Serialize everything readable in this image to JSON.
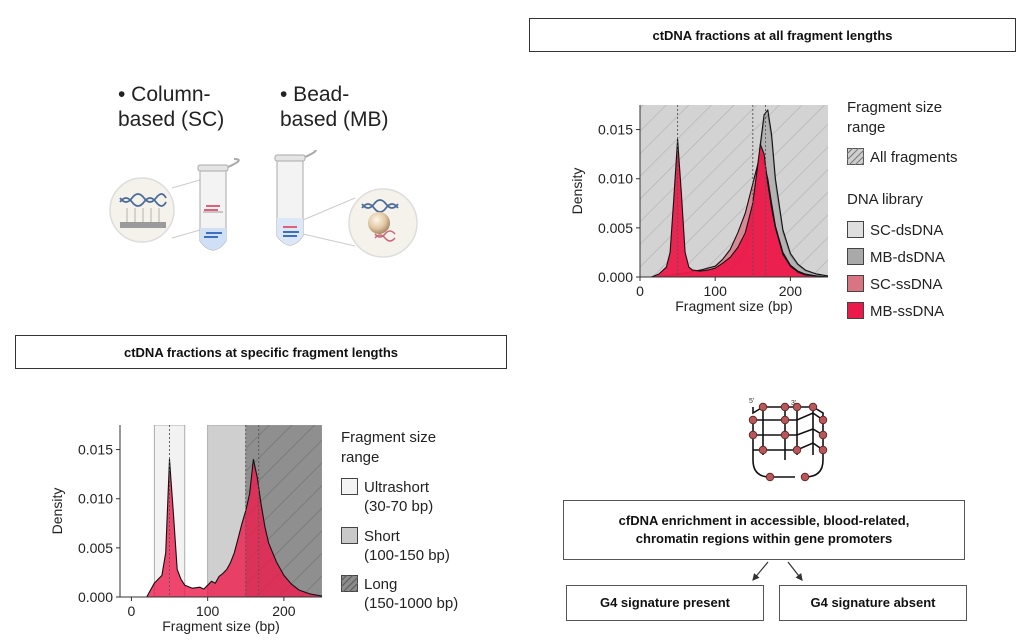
{
  "extraction": {
    "column": {
      "line1": "• Column-",
      "line2": "based (SC)"
    },
    "bead": {
      "line1": "• Bead-",
      "line2": "based (MB)"
    }
  },
  "top_chart": {
    "title": "ctDNA fractions at all fragment lengths",
    "legend": {
      "range_title_1": "Fragment size",
      "range_title_2": "range",
      "all_fragments": "All fragments",
      "library_title": "DNA library",
      "items": [
        "SC-dsDNA",
        "MB-dsDNA",
        "SC-ssDNA",
        "MB-ssDNA"
      ]
    }
  },
  "bottom_chart": {
    "title": "ctDNA fractions at specific fragment lengths",
    "legend": {
      "title_1": "Fragment size",
      "title_2": "range",
      "ultrashort": "Ultrashort",
      "ultrashort_range": "(30-70 bp)",
      "short": "Short",
      "short_range": "(100-150 bp)",
      "long": "Long",
      "long_range": "(150-1000 bp)"
    }
  },
  "g4": {
    "label_left": "5'",
    "label_right": "3'"
  },
  "flow": {
    "main_line1": "cfDNA enrichment in accessible, blood-related,",
    "main_line2": "chromatin regions within gene promoters",
    "present": "G4 signature present",
    "absent": "G4 signature absent"
  },
  "colors": {
    "sc_ds": "#dedede",
    "mb_ds": "#a9a9a9",
    "sc_ss": "#d97583",
    "mb_ss": "#ec1a4b",
    "hatch_bg": "#d3d3d3"
  },
  "chart_data": [
    {
      "type": "area",
      "title": "ctDNA fractions at all fragment lengths",
      "xlabel": "Fragment size (bp)",
      "ylabel": "Density",
      "xlim": [
        0,
        250
      ],
      "ylim": [
        0,
        0.0175
      ],
      "xticks": [
        0,
        100,
        200
      ],
      "yticks": [
        "0.000",
        "0.005",
        "0.010",
        "0.015"
      ],
      "reference_lines_bp": [
        50,
        150,
        167
      ],
      "shaded_range": {
        "name": "All fragments",
        "from": 0,
        "to": 250
      },
      "series": [
        {
          "name": "SC-dsDNA",
          "x": [
            0,
            20,
            40,
            60,
            80,
            100,
            110,
            120,
            130,
            140,
            150,
            155,
            160,
            165,
            170,
            175,
            180,
            190,
            200,
            210,
            220,
            235,
            250
          ],
          "values": [
            0,
            0,
            0,
            0,
            0.0001,
            0.0003,
            0.0004,
            0.0007,
            0.0012,
            0.0025,
            0.0055,
            0.0085,
            0.013,
            0.016,
            0.0165,
            0.014,
            0.0095,
            0.0045,
            0.0022,
            0.0012,
            0.0006,
            0.0003,
            0.0001
          ]
        },
        {
          "name": "MB-dsDNA",
          "x": [
            0,
            20,
            40,
            60,
            80,
            100,
            110,
            120,
            130,
            140,
            150,
            155,
            160,
            165,
            170,
            175,
            180,
            190,
            200,
            210,
            220,
            235,
            250
          ],
          "values": [
            0,
            0,
            0,
            0,
            0.0001,
            0.0003,
            0.0005,
            0.0008,
            0.0014,
            0.003,
            0.006,
            0.009,
            0.0135,
            0.0165,
            0.017,
            0.0145,
            0.01,
            0.0048,
            0.0024,
            0.0013,
            0.0007,
            0.0003,
            0.0001
          ]
        },
        {
          "name": "SC-ssDNA",
          "x": [
            0,
            20,
            40,
            60,
            80,
            100,
            110,
            120,
            130,
            140,
            150,
            155,
            160,
            165,
            170,
            175,
            180,
            190,
            200,
            210,
            220,
            235,
            250
          ],
          "values": [
            0,
            0,
            0.0002,
            0.0004,
            0.0007,
            0.0011,
            0.0018,
            0.0028,
            0.0045,
            0.0065,
            0.0095,
            0.011,
            0.0125,
            0.0115,
            0.01,
            0.0075,
            0.0052,
            0.0025,
            0.0012,
            0.0006,
            0.0003,
            0.0001,
            0
          ]
        },
        {
          "name": "MB-ssDNA",
          "x": [
            0,
            15,
            25,
            35,
            40,
            45,
            50,
            55,
            60,
            65,
            70,
            80,
            90,
            100,
            110,
            120,
            130,
            140,
            150,
            155,
            160,
            165,
            170,
            175,
            180,
            190,
            200,
            210,
            220,
            235,
            250
          ],
          "values": [
            0,
            0,
            0.0003,
            0.001,
            0.0025,
            0.008,
            0.014,
            0.0085,
            0.0025,
            0.001,
            0.0007,
            0.0006,
            0.0007,
            0.0009,
            0.0014,
            0.002,
            0.003,
            0.0045,
            0.0075,
            0.0105,
            0.0135,
            0.0125,
            0.0095,
            0.007,
            0.005,
            0.0023,
            0.0011,
            0.0005,
            0.0002,
            0.0001,
            0
          ]
        }
      ]
    },
    {
      "type": "area",
      "title": "ctDNA fractions at specific fragment lengths",
      "xlabel": "Fragment size (bp)",
      "ylabel": "Density",
      "xlim": [
        -15,
        250
      ],
      "ylim": [
        0,
        0.0175
      ],
      "xticks": [
        0,
        100,
        200
      ],
      "yticks": [
        "0.000",
        "0.005",
        "0.010",
        "0.015"
      ],
      "reference_lines_bp": [
        50,
        150,
        167
      ],
      "shaded_ranges": [
        {
          "name": "Ultrashort",
          "from": 30,
          "to": 70
        },
        {
          "name": "Short",
          "from": 100,
          "to": 150
        },
        {
          "name": "Long",
          "from": 150,
          "to": 1000
        }
      ],
      "series": [
        {
          "name": "MB-ssDNA",
          "x": [
            -5,
            20,
            25,
            30,
            35,
            40,
            45,
            50,
            55,
            60,
            65,
            70,
            80,
            90,
            95,
            100,
            105,
            110,
            115,
            120,
            125,
            130,
            135,
            140,
            145,
            150,
            155,
            160,
            165,
            170,
            175,
            180,
            190,
            200,
            210,
            220,
            235,
            250
          ],
          "values": [
            0,
            0,
            0.0007,
            0.0014,
            0.0018,
            0.0022,
            0.0045,
            0.014,
            0.0085,
            0.0028,
            0.0018,
            0.0012,
            0.0009,
            0.001,
            0.0008,
            0.0012,
            0.0016,
            0.0014,
            0.0021,
            0.0024,
            0.0028,
            0.0035,
            0.0045,
            0.006,
            0.0075,
            0.0088,
            0.0105,
            0.014,
            0.0122,
            0.0095,
            0.0072,
            0.0055,
            0.0036,
            0.0022,
            0.0013,
            0.0007,
            0.0003,
            0.0001
          ]
        }
      ]
    }
  ]
}
